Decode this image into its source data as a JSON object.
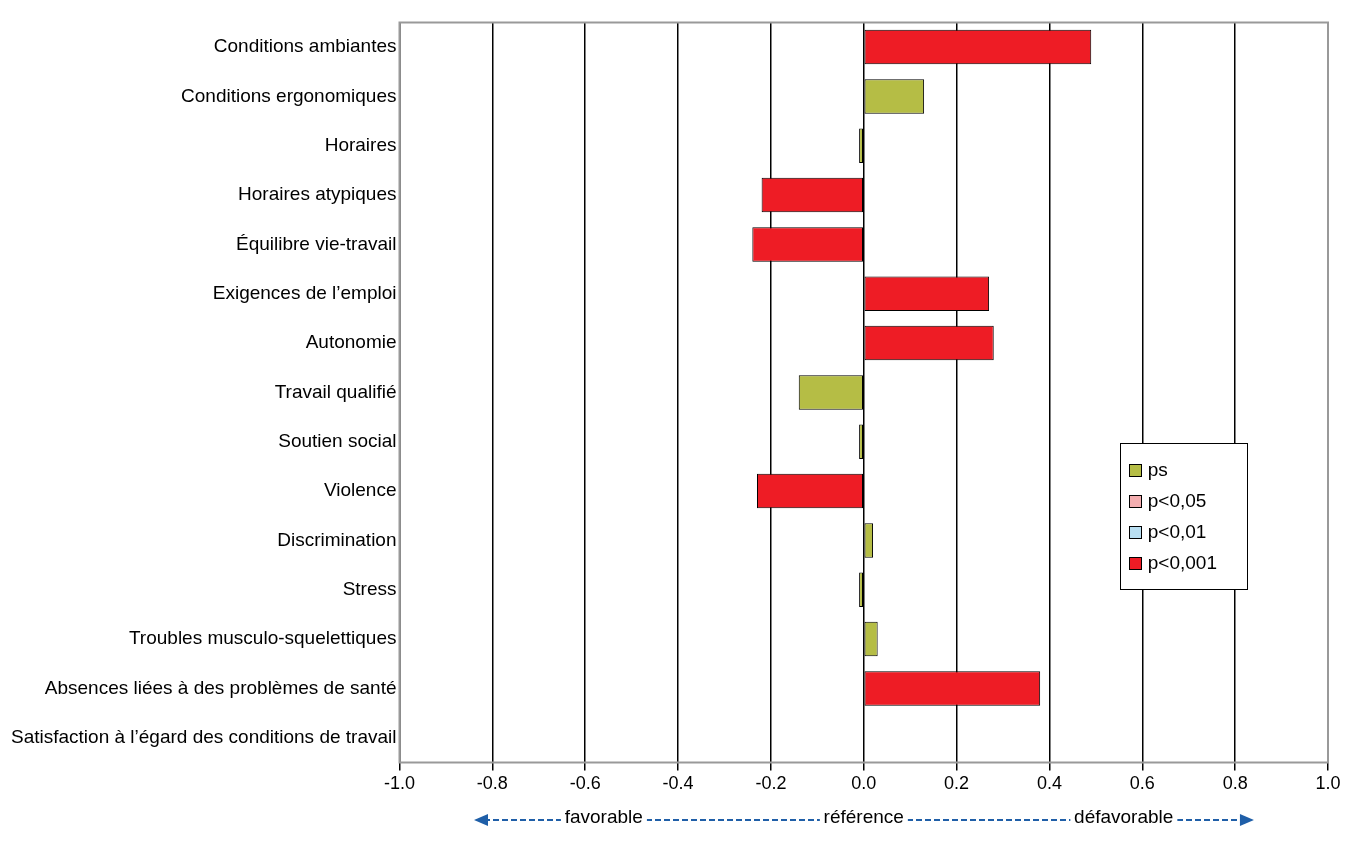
{
  "chart_data": {
    "type": "bar",
    "orientation": "horizontal",
    "stacked": true,
    "categories": [
      "Conditions ambiantes",
      "Conditions ergonomiques",
      "Horaires",
      "Horaires atypiques",
      "Équilibre vie-travail",
      "Exigences de l’emploi",
      "Autonomie",
      "Travail qualifié",
      "Soutien social",
      "Violence",
      "Discrimination",
      "Stress",
      "Troubles musculo-squelettiques",
      "Absences liées à des problèmes de santé",
      "Satisfaction à l’égard des conditions de travail"
    ],
    "series": [
      {
        "name": "ps",
        "color": "#b5bd45",
        "values": [
          null,
          0.13,
          -0.01,
          null,
          null,
          null,
          null,
          -0.14,
          -0.01,
          null,
          0.02,
          -0.01,
          0.03,
          null,
          null
        ]
      },
      {
        "name": "p<0,05",
        "color": "#f4aeb0",
        "values": [
          null,
          null,
          null,
          null,
          null,
          null,
          null,
          null,
          null,
          null,
          null,
          null,
          null,
          null,
          null
        ]
      },
      {
        "name": "p<0,01",
        "color": "#b9dff2",
        "values": [
          null,
          null,
          null,
          null,
          null,
          null,
          null,
          null,
          null,
          null,
          null,
          null,
          null,
          null,
          null
        ]
      },
      {
        "name": "p<0,001",
        "color": "#ee1c25",
        "values": [
          0.49,
          null,
          null,
          -0.22,
          -0.24,
          0.27,
          0.28,
          null,
          null,
          -0.23,
          null,
          null,
          null,
          0.38,
          null
        ]
      }
    ],
    "xlim": [
      -1,
      1
    ],
    "xticks": [
      {
        "value": -1,
        "label": "-1.0"
      },
      -0.8,
      -0.6,
      -0.4,
      -0.2,
      {
        "value": 0,
        "label": "0.0"
      },
      0.2,
      0.4,
      0.6,
      0.8,
      {
        "value": 1,
        "label": "1.0"
      }
    ],
    "grid": "x",
    "legend": "right",
    "annotations": [
      "favorable",
      "référence",
      "défavorable"
    ]
  }
}
